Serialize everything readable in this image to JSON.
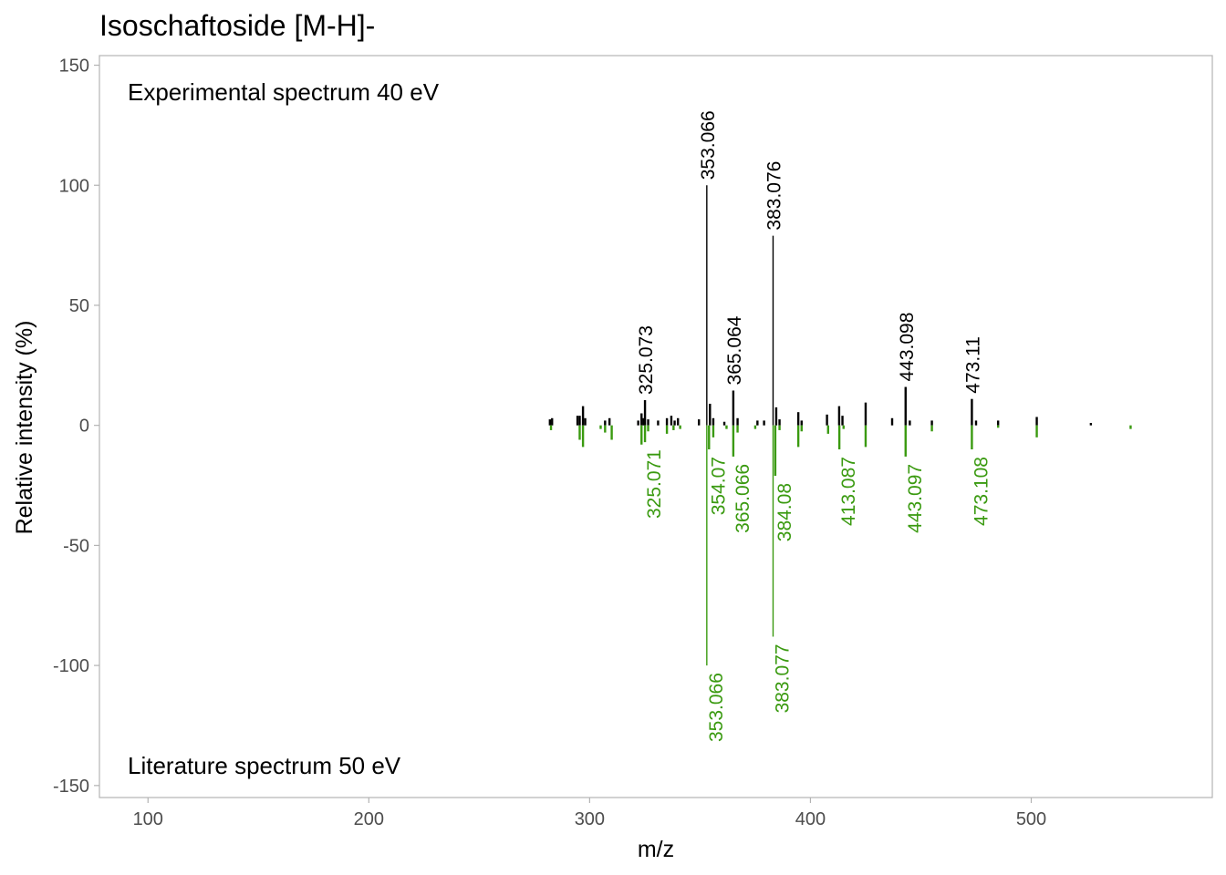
{
  "chart_data": {
    "type": "mirror-spectrum",
    "title": "Isoschaftoside [M-H]-",
    "xlabel": "m/z",
    "ylabel": "Relative intensity (%)",
    "xlim": [
      78,
      582
    ],
    "ylim": [
      -155,
      154
    ],
    "xticks": [
      100,
      200,
      300,
      400,
      500
    ],
    "yticks": [
      150,
      100,
      50,
      0,
      -50,
      -100,
      -150
    ],
    "grid": false,
    "annotations": {
      "top": "Experimental spectrum 40 eV",
      "bottom": "Literature spectrum 50 eV"
    },
    "colors": {
      "experimental": "#000000",
      "literature": "#3a9a10",
      "frame": "#b3b3b3",
      "ticks": "#4d4d4d"
    },
    "experimental": {
      "peaks": [
        [
          282,
          2.5
        ],
        [
          283,
          3
        ],
        [
          294.5,
          4
        ],
        [
          295.5,
          4
        ],
        [
          297,
          8
        ],
        [
          298,
          3
        ],
        [
          307,
          2
        ],
        [
          309,
          3
        ],
        [
          322,
          2
        ],
        [
          323.5,
          5
        ],
        [
          324.5,
          3
        ],
        [
          325.073,
          10.5
        ],
        [
          326.5,
          2.5
        ],
        [
          331,
          2
        ],
        [
          335,
          3
        ],
        [
          337,
          4
        ],
        [
          338.5,
          2
        ],
        [
          340,
          3
        ],
        [
          349.5,
          2.5
        ],
        [
          353.066,
          100
        ],
        [
          354.5,
          9
        ],
        [
          356,
          3
        ],
        [
          361,
          1.5
        ],
        [
          365.064,
          14.5
        ],
        [
          367,
          3
        ],
        [
          376,
          2
        ],
        [
          379,
          2
        ],
        [
          383.076,
          79
        ],
        [
          384.5,
          7.5
        ],
        [
          386,
          2.5
        ],
        [
          394.5,
          5.5
        ],
        [
          396,
          2
        ],
        [
          407.5,
          4.5
        ],
        [
          413,
          8
        ],
        [
          414.5,
          4
        ],
        [
          425,
          9.5
        ],
        [
          437,
          3
        ],
        [
          443.098,
          16
        ],
        [
          445,
          2
        ],
        [
          455,
          2
        ],
        [
          473.11,
          11
        ],
        [
          475,
          2
        ],
        [
          485,
          2
        ],
        [
          502.5,
          3.5
        ],
        [
          527,
          1
        ]
      ],
      "labels": [
        {
          "mz": 325.073,
          "text": "325.073"
        },
        {
          "mz": 353.066,
          "text": "353.066"
        },
        {
          "mz": 365.064,
          "text": "365.064"
        },
        {
          "mz": 383.076,
          "text": "383.076"
        },
        {
          "mz": 443.098,
          "text": "443.098"
        },
        {
          "mz": 473.11,
          "text": "473.11"
        }
      ]
    },
    "literature": {
      "peaks": [
        [
          282.5,
          2
        ],
        [
          295.5,
          6
        ],
        [
          297,
          9
        ],
        [
          305,
          1.5
        ],
        [
          307,
          3
        ],
        [
          310,
          6
        ],
        [
          323.5,
          8
        ],
        [
          325.071,
          7
        ],
        [
          326.5,
          2.5
        ],
        [
          335,
          3.5
        ],
        [
          338,
          2
        ],
        [
          341,
          1.5
        ],
        [
          353.066,
          100
        ],
        [
          354.07,
          10
        ],
        [
          356,
          5
        ],
        [
          362,
          1.5
        ],
        [
          365.066,
          13
        ],
        [
          367,
          3
        ],
        [
          375,
          1.5
        ],
        [
          383.077,
          88
        ],
        [
          384.08,
          21
        ],
        [
          386,
          2
        ],
        [
          394.5,
          9
        ],
        [
          396,
          2.5
        ],
        [
          408,
          3.5
        ],
        [
          413.087,
          10
        ],
        [
          415,
          1.5
        ],
        [
          425,
          9
        ],
        [
          443.097,
          13
        ],
        [
          455,
          2.5
        ],
        [
          473.108,
          10
        ],
        [
          485,
          1
        ],
        [
          502.5,
          5
        ],
        [
          545,
          1.5
        ]
      ],
      "labels": [
        {
          "mz": 325.071,
          "text": "325.071"
        },
        {
          "mz": 353.066,
          "text": "353.066"
        },
        {
          "mz": 354.07,
          "text": "354.07"
        },
        {
          "mz": 365.066,
          "text": "365.066"
        },
        {
          "mz": 383.077,
          "text": "383.077"
        },
        {
          "mz": 384.08,
          "text": "384.08"
        },
        {
          "mz": 413.087,
          "text": "413.087"
        },
        {
          "mz": 443.097,
          "text": "443.097"
        },
        {
          "mz": 473.108,
          "text": "473.108"
        }
      ]
    }
  }
}
